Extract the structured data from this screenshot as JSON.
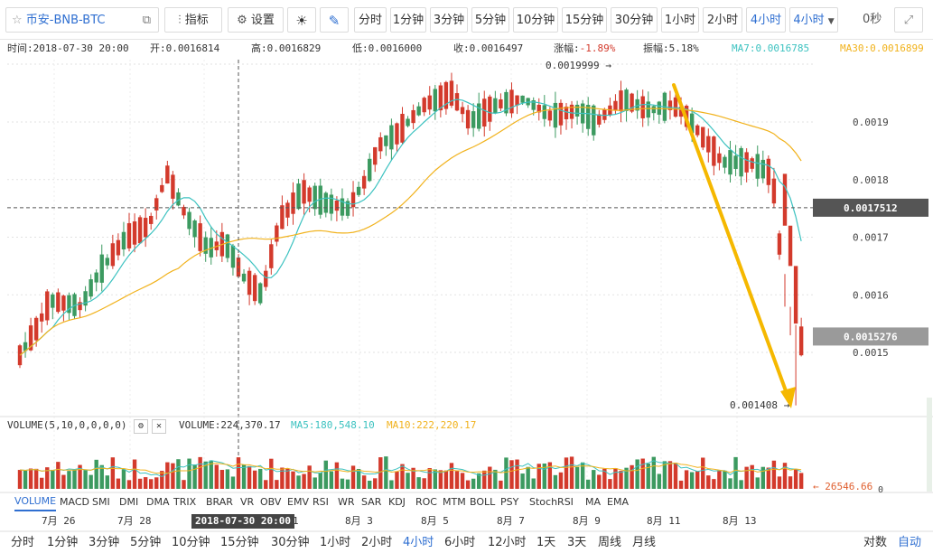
{
  "toolbar": {
    "symbol": "币安-BNB-BTC",
    "indicators_label": "指标",
    "settings_label": "设置",
    "intervals": [
      "分时",
      "1分钟",
      "3分钟",
      "5分钟",
      "10分钟",
      "15分钟",
      "30分钟",
      "1小时",
      "2小时",
      "4小时"
    ],
    "active_interval": "4小时",
    "dropdown_label": "4小时",
    "countdown": "0秒"
  },
  "info_bar": {
    "time": "时间:2018-07-30 20:00",
    "open": "开:0.0016814",
    "high": "高:0.0016829",
    "low": "低:0.0016000",
    "close": "收:0.0016497",
    "change_label": "涨幅:",
    "change_value": "-1.89%",
    "amplitude": "振幅:5.18%",
    "ma7": "MA7:0.0016785",
    "ma30": "MA30:0.0016899"
  },
  "price_axis": {
    "ticks": [
      "0.0019",
      "0.0018",
      "0.0017",
      "0.0016",
      "0.0015"
    ],
    "crosshair_price": "0.0017512",
    "last_price": "0.0015276",
    "max_label": "0.0019999",
    "min_label": "0.001408"
  },
  "volume": {
    "params": "VOLUME(5,10,0,0,0,0)",
    "value": "VOLUME:224,370.17",
    "ma5": "MA5:180,548.10",
    "ma10": "MA10:222,220.17",
    "axis_label": "26546.66",
    "zero_label": "0"
  },
  "indicator_tabs": [
    "VOLUME",
    "MACD",
    "SMI",
    "DMI",
    "DMA",
    "TRIX",
    "BRAR",
    "VR",
    "OBV",
    "EMV",
    "RSI",
    "WR",
    "SAR",
    "KDJ",
    "ROC",
    "MTM",
    "BOLL",
    "PSY",
    "StochRSI",
    "MA",
    "EMA"
  ],
  "date_axis": {
    "labels": [
      "7月 26",
      "7月 28",
      "1",
      "8月 3",
      "8月 5",
      "8月 7",
      "8月 9",
      "8月 11",
      "8月 13"
    ],
    "crosshair_date": "2018-07-30 20:00"
  },
  "bottom_intervals": [
    "分时",
    "1分钟",
    "3分钟",
    "5分钟",
    "10分钟",
    "15分钟",
    "30分钟",
    "1小时",
    "2小时",
    "4小时",
    "6小时",
    "12小时",
    "1天",
    "3天",
    "周线",
    "月线"
  ],
  "bottom_active": "4小时",
  "bottom_right": [
    "对数",
    "自动"
  ],
  "colors": {
    "up": "#3c9a60",
    "down": "#d33a2c",
    "ma7": "#3cc2c0",
    "ma30": "#f1b21c",
    "arrow": "#f5b800",
    "accent": "#2f6fd1"
  }
}
